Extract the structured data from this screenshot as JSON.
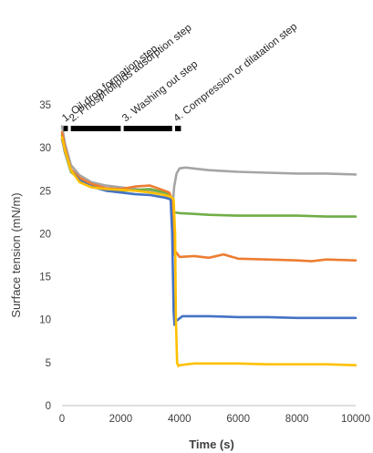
{
  "chart_data": {
    "type": "line",
    "xlabel": "Time (s)",
    "ylabel": "Surface tension (mN/m)",
    "xlim": [
      0,
      10000
    ],
    "ylim": [
      0,
      35
    ],
    "x_ticks": [
      "0",
      "2000",
      "4000",
      "6000",
      "8000",
      "10000"
    ],
    "y_ticks": [
      "0",
      "5",
      "10",
      "15",
      "20",
      "25",
      "30",
      "35"
    ],
    "grid": false,
    "legend": "none",
    "steps": [
      {
        "label": "1. Oil drop formation step",
        "x_start": 50,
        "x_end": 200
      },
      {
        "label": "2. Phospholipids adsorption step",
        "x_start": 300,
        "x_end": 2000
      },
      {
        "label": "3. Washing out step",
        "x_start": 2100,
        "x_end": 3750
      },
      {
        "label": "4. Compression or dilatation step",
        "x_start": 3850,
        "x_end": 4050
      }
    ],
    "series": [
      {
        "color": "#a5a5a5",
        "x": [
          0,
          100,
          300,
          600,
          1000,
          1500,
          2000,
          2500,
          3000,
          3500,
          3700,
          3780,
          3820,
          3900,
          4000,
          4200,
          5000,
          6000,
          7000,
          8000,
          9000,
          10000
        ],
        "y": [
          32.5,
          30.5,
          28.0,
          26.8,
          26.0,
          25.6,
          25.4,
          25.2,
          25.0,
          24.5,
          24.0,
          23.8,
          25.5,
          27.0,
          27.6,
          27.7,
          27.4,
          27.2,
          27.1,
          27.0,
          27.0,
          26.9
        ]
      },
      {
        "color": "#70ad47",
        "x": [
          0,
          100,
          300,
          600,
          1000,
          1500,
          2000,
          2500,
          3000,
          3500,
          3700,
          3750,
          3800,
          4000,
          4500,
          5000,
          6000,
          7000,
          8000,
          9000,
          10000
        ],
        "y": [
          31.5,
          29.5,
          27.2,
          26.3,
          25.6,
          25.1,
          25.0,
          25.1,
          25.2,
          24.8,
          24.4,
          23.8,
          22.5,
          22.4,
          22.3,
          22.2,
          22.1,
          22.1,
          22.1,
          22.0,
          22.0
        ]
      },
      {
        "color": "#ed7d31",
        "x": [
          0,
          100,
          300,
          600,
          1000,
          1500,
          2000,
          2500,
          3000,
          3500,
          3650,
          3750,
          3800,
          3830,
          3850,
          3900,
          4000,
          4500,
          5000,
          5500,
          6000,
          7000,
          8000,
          8500,
          9000,
          10000
        ],
        "y": [
          31.8,
          30.0,
          27.5,
          26.5,
          25.8,
          25.3,
          25.2,
          25.5,
          25.6,
          25.0,
          24.8,
          24.0,
          21.0,
          18.0,
          17.5,
          17.8,
          17.3,
          17.4,
          17.2,
          17.6,
          17.1,
          17.0,
          16.9,
          16.8,
          17.0,
          16.9
        ]
      },
      {
        "color": "#4472c4",
        "x": [
          0,
          100,
          300,
          600,
          1000,
          1500,
          2000,
          2500,
          3000,
          3500,
          3700,
          3750,
          3780,
          3800,
          3830,
          3870,
          3950,
          4100,
          5000,
          6000,
          7000,
          8000,
          9000,
          10000
        ],
        "y": [
          31.0,
          29.5,
          27.4,
          26.2,
          25.5,
          25.0,
          24.8,
          24.6,
          24.5,
          24.2,
          24.0,
          20.0,
          15.0,
          11.0,
          9.4,
          9.8,
          10.0,
          10.4,
          10.4,
          10.3,
          10.3,
          10.2,
          10.2,
          10.2
        ]
      },
      {
        "color": "#ffc000",
        "x": [
          0,
          100,
          300,
          600,
          1000,
          1500,
          2000,
          2500,
          3000,
          3500,
          3700,
          3800,
          3850,
          3880,
          3920,
          3960,
          4000,
          4500,
          5000,
          6000,
          7000,
          8000,
          9000,
          10000
        ],
        "y": [
          31.2,
          29.7,
          27.4,
          26.0,
          25.4,
          25.2,
          25.1,
          25.0,
          24.8,
          24.5,
          24.3,
          24.0,
          20.0,
          10.0,
          5.0,
          4.6,
          4.7,
          4.9,
          4.9,
          4.9,
          4.8,
          4.8,
          4.8,
          4.7
        ]
      }
    ]
  }
}
